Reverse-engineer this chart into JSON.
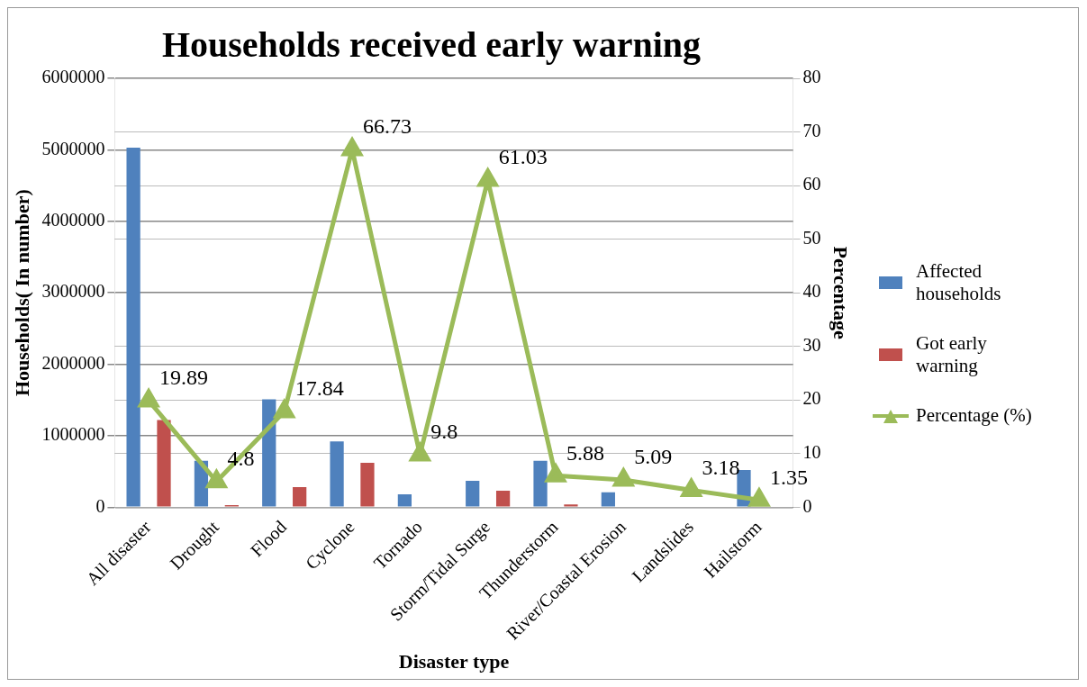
{
  "chart_data": {
    "type": "bar",
    "title": "Households received early warning",
    "xlabel": "Disaster type",
    "ylabel": "Households( In number)",
    "y2label": "Percentage",
    "categories": [
      "All disaster",
      "Drought",
      "Flood",
      "Cyclone",
      "Tornado",
      "Storm/Tidal Surge",
      "Thunderstorm",
      "River/Coastal Erosion",
      "Landslides",
      "Hailstorm"
    ],
    "series": [
      {
        "name": "Affected households",
        "color": "#4f81bd",
        "values": [
          5030000,
          650000,
          1510000,
          920000,
          180000,
          370000,
          650000,
          210000,
          0,
          520000
        ]
      },
      {
        "name": "Got early warning",
        "color": "#c0504d",
        "values": [
          1220000,
          30000,
          280000,
          620000,
          null,
          230000,
          40000,
          null,
          0,
          null
        ]
      },
      {
        "name": "Percentage (%)",
        "type": "line",
        "axis": "y2",
        "color": "#9bbb59",
        "marker": "triangle",
        "values": [
          19.89,
          4.8,
          17.84,
          66.73,
          9.8,
          61.03,
          5.88,
          5.09,
          3.18,
          1.35
        ],
        "value_labels": [
          "19.89",
          "4.8",
          "17.84",
          "66.73",
          "9.8",
          "61.03",
          "5.88",
          "5.09",
          "3.18",
          "1.35"
        ]
      }
    ],
    "ylim": [
      0,
      6000000
    ],
    "yticks": [
      0,
      1000000,
      2000000,
      3000000,
      4000000,
      5000000,
      6000000
    ],
    "y2lim": [
      0,
      80
    ],
    "y2ticks": [
      0,
      10,
      20,
      30,
      40,
      50,
      60,
      70,
      80
    ],
    "grid": true,
    "legend": "right"
  }
}
